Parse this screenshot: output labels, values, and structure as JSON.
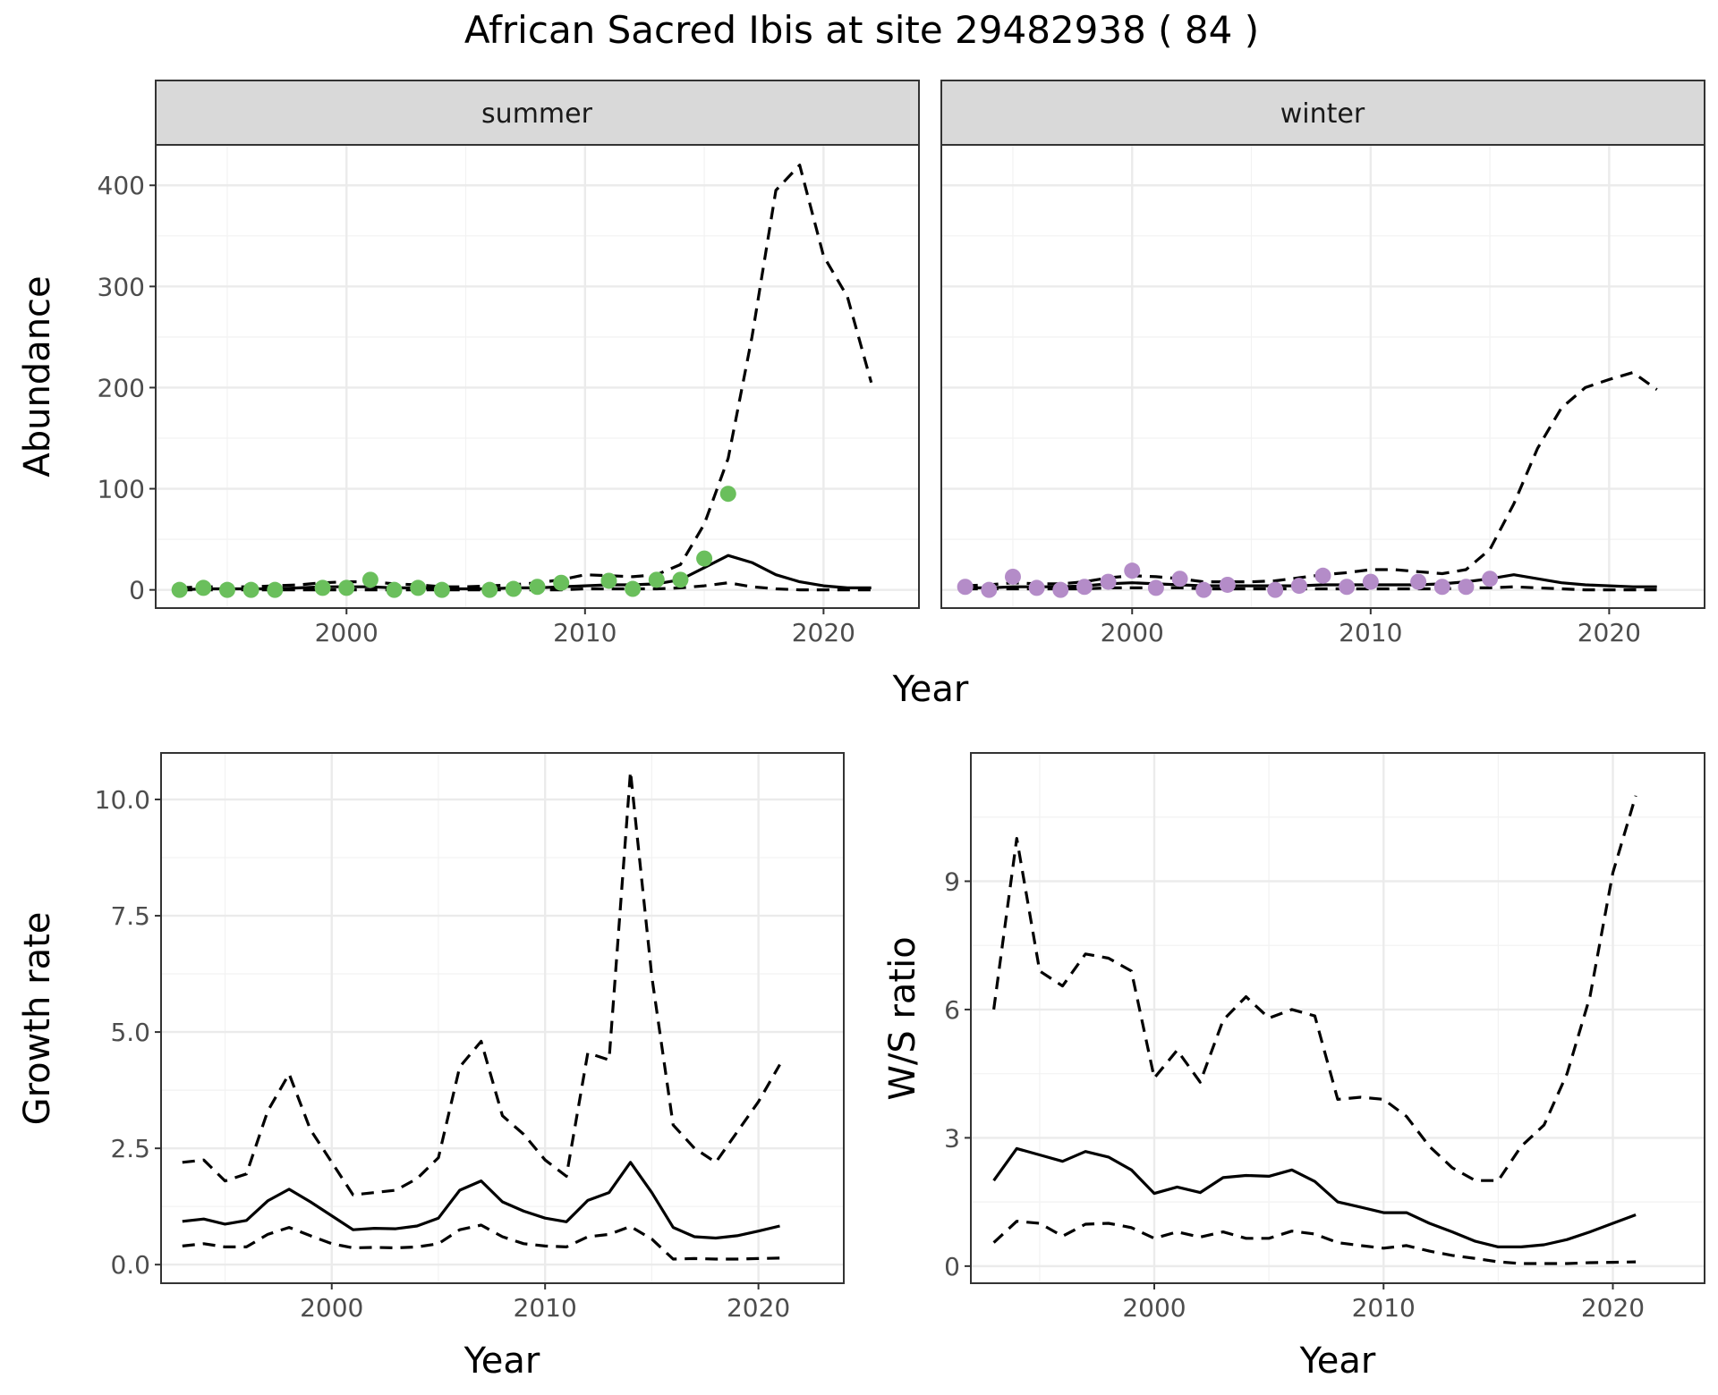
{
  "figure_title": "African Sacred Ibis at site 29482938 ( 84 )",
  "colors": {
    "summer_points": "#6abf5c",
    "winter_points": "#b48cc8",
    "lines": "#000000"
  },
  "chart_data": [
    {
      "type": "line",
      "facet": "summer",
      "strip_label": "summer",
      "xlabel": "Year",
      "ylabel": "Abundance",
      "xlim": [
        1992,
        2024
      ],
      "ylim": [
        -18,
        440
      ],
      "x_ticks": [
        2000,
        2010,
        2020
      ],
      "x_tick_labels": [
        "2000",
        "2010",
        "2020"
      ],
      "y_ticks": [
        0,
        100,
        200,
        300,
        400
      ],
      "y_tick_labels": [
        "0",
        "100",
        "200",
        "300",
        "400"
      ],
      "x": [
        1993,
        1994,
        1995,
        1996,
        1997,
        1998,
        1999,
        2000,
        2001,
        2002,
        2003,
        2004,
        2005,
        2006,
        2007,
        2008,
        2009,
        2010,
        2011,
        2012,
        2013,
        2014,
        2015,
        2016,
        2017,
        2018,
        2019,
        2020,
        2021,
        2022
      ],
      "series": [
        {
          "name": "",
          "style": "solid",
          "values": [
            0,
            1,
            1,
            1,
            1,
            2,
            3,
            3,
            3,
            2,
            2,
            1,
            1,
            1,
            2,
            2,
            3,
            4,
            5,
            5,
            6,
            10,
            22,
            34,
            27,
            15,
            8,
            4,
            2,
            2
          ]
        },
        {
          "name": "",
          "style": "dashed-upper",
          "values": [
            2,
            3,
            3,
            3,
            4,
            5,
            7,
            8,
            8,
            6,
            5,
            3,
            3,
            4,
            5,
            7,
            10,
            15,
            14,
            13,
            15,
            25,
            65,
            130,
            250,
            395,
            420,
            330,
            290,
            205
          ]
        },
        {
          "name": "",
          "style": "dashed-lower",
          "values": [
            0,
            0,
            0,
            0,
            0,
            0,
            0,
            0,
            0,
            0,
            0,
            0,
            0,
            0,
            0,
            0,
            0,
            1,
            1,
            1,
            1,
            2,
            4,
            7,
            3,
            1,
            0,
            0,
            0,
            0
          ]
        }
      ],
      "points": {
        "x": [
          1993,
          1994,
          1995,
          1996,
          1997,
          1999,
          2000,
          2001,
          2002,
          2003,
          2004,
          2006,
          2007,
          2008,
          2009,
          2011,
          2012,
          2013,
          2014,
          2015,
          2016
        ],
        "y": [
          0,
          2,
          0,
          0,
          0,
          2,
          2,
          10,
          0,
          2,
          0,
          0,
          1,
          3,
          7,
          9,
          1,
          10,
          10,
          31,
          95
        ]
      }
    },
    {
      "type": "line",
      "facet": "winter",
      "strip_label": "winter",
      "xlabel": "Year",
      "ylabel": "",
      "xlim": [
        1992,
        2024
      ],
      "ylim": [
        -18,
        440
      ],
      "x_ticks": [
        2000,
        2010,
        2020
      ],
      "x_tick_labels": [
        "2000",
        "2010",
        "2020"
      ],
      "y_ticks": [
        0,
        100,
        200,
        300,
        400
      ],
      "y_tick_labels": [],
      "x": [
        1993,
        1994,
        1995,
        1996,
        1997,
        1998,
        1999,
        2000,
        2001,
        2002,
        2003,
        2004,
        2005,
        2006,
        2007,
        2008,
        2009,
        2010,
        2011,
        2012,
        2013,
        2014,
        2015,
        2016,
        2017,
        2018,
        2019,
        2020,
        2021,
        2022
      ],
      "series": [
        {
          "name": "",
          "style": "solid",
          "values": [
            2,
            2,
            3,
            3,
            3,
            4,
            6,
            7,
            6,
            5,
            4,
            4,
            4,
            4,
            4,
            5,
            5,
            5,
            5,
            5,
            6,
            8,
            11,
            15,
            11,
            7,
            5,
            4,
            3,
            3
          ]
        },
        {
          "name": "",
          "style": "dashed-upper",
          "values": [
            4,
            5,
            7,
            6,
            6,
            8,
            12,
            14,
            13,
            11,
            8,
            8,
            8,
            9,
            12,
            15,
            17,
            20,
            20,
            18,
            16,
            20,
            40,
            85,
            140,
            180,
            200,
            208,
            215,
            198
          ]
        },
        {
          "name": "",
          "style": "dashed-lower",
          "values": [
            1,
            1,
            1,
            1,
            1,
            1,
            2,
            2,
            2,
            2,
            1,
            1,
            1,
            1,
            1,
            1,
            1,
            1,
            1,
            1,
            1,
            2,
            2,
            3,
            2,
            1,
            0,
            0,
            0,
            0
          ]
        }
      ],
      "points": {
        "x": [
          1993,
          1994,
          1995,
          1996,
          1997,
          1998,
          1999,
          2000,
          2001,
          2002,
          2003,
          2004,
          2006,
          2007,
          2008,
          2009,
          2010,
          2012,
          2013,
          2014,
          2015
        ],
        "y": [
          3,
          0,
          13,
          2,
          0,
          3,
          8,
          19,
          2,
          11,
          0,
          5,
          0,
          4,
          14,
          3,
          8,
          8,
          3,
          3,
          11
        ]
      }
    },
    {
      "type": "line",
      "facet": "growth-rate",
      "xlabel": "Year",
      "ylabel": "Growth rate",
      "xlim": [
        1992,
        2024
      ],
      "ylim": [
        -0.4,
        11
      ],
      "x_ticks": [
        2000,
        2010,
        2020
      ],
      "x_tick_labels": [
        "2000",
        "2010",
        "2020"
      ],
      "y_ticks": [
        0,
        2.5,
        5,
        7.5,
        10
      ],
      "y_tick_labels": [
        "0.0",
        "2.5",
        "5.0",
        "7.5",
        "10.0"
      ],
      "x": [
        1993,
        1994,
        1995,
        1996,
        1997,
        1998,
        1999,
        2000,
        2001,
        2002,
        2003,
        2004,
        2005,
        2006,
        2007,
        2008,
        2009,
        2010,
        2011,
        2012,
        2013,
        2014,
        2015,
        2016,
        2017,
        2018,
        2019,
        2020,
        2021
      ],
      "series": [
        {
          "name": "",
          "style": "solid",
          "values": [
            0.93,
            0.98,
            0.87,
            0.95,
            1.37,
            1.62,
            1.35,
            1.05,
            0.75,
            0.78,
            0.77,
            0.83,
            1.0,
            1.6,
            1.8,
            1.35,
            1.15,
            1.0,
            0.92,
            1.38,
            1.55,
            2.2,
            1.55,
            0.8,
            0.6,
            0.57,
            0.62,
            0.72,
            0.83
          ]
        },
        {
          "name": "",
          "style": "dashed-upper",
          "values": [
            2.2,
            2.25,
            1.8,
            1.95,
            3.3,
            4.1,
            2.9,
            2.2,
            1.5,
            1.55,
            1.6,
            1.85,
            2.3,
            4.25,
            4.8,
            3.2,
            2.8,
            2.25,
            1.9,
            4.55,
            4.4,
            10.6,
            6.2,
            3.0,
            2.5,
            2.2,
            2.85,
            3.5,
            4.3
          ]
        },
        {
          "name": "",
          "style": "dashed-lower",
          "values": [
            0.4,
            0.45,
            0.38,
            0.38,
            0.65,
            0.8,
            0.62,
            0.45,
            0.36,
            0.37,
            0.36,
            0.38,
            0.45,
            0.75,
            0.85,
            0.6,
            0.45,
            0.4,
            0.38,
            0.6,
            0.65,
            0.82,
            0.55,
            0.12,
            0.13,
            0.12,
            0.12,
            0.13,
            0.14
          ]
        }
      ]
    },
    {
      "type": "line",
      "facet": "ws-ratio",
      "xlabel": "Year",
      "ylabel": "W/S ratio",
      "xlim": [
        1992,
        2024
      ],
      "ylim": [
        -0.4,
        12.0
      ],
      "x_ticks": [
        2000,
        2010,
        2020
      ],
      "x_tick_labels": [
        "2000",
        "2010",
        "2020"
      ],
      "y_ticks": [
        0,
        3,
        6,
        9
      ],
      "y_tick_labels": [
        "0",
        "3",
        "6",
        "9"
      ],
      "x": [
        1993,
        1994,
        1995,
        1996,
        1997,
        1998,
        1999,
        2000,
        2001,
        2002,
        2003,
        2004,
        2005,
        2006,
        2007,
        2008,
        2009,
        2010,
        2011,
        2012,
        2013,
        2014,
        2015,
        2016,
        2017,
        2018,
        2019,
        2020,
        2021
      ],
      "series": [
        {
          "name": "",
          "style": "solid",
          "values": [
            2.0,
            2.75,
            2.6,
            2.45,
            2.68,
            2.55,
            2.25,
            1.7,
            1.85,
            1.72,
            2.07,
            2.12,
            2.1,
            2.25,
            1.98,
            1.5,
            1.38,
            1.25,
            1.25,
            1.0,
            0.8,
            0.58,
            0.45,
            0.45,
            0.5,
            0.62,
            0.8,
            1.0,
            1.2
          ]
        },
        {
          "name": "",
          "style": "dashed-upper",
          "values": [
            6.0,
            10.0,
            6.9,
            6.55,
            7.3,
            7.2,
            6.9,
            4.4,
            5.05,
            4.3,
            5.75,
            6.3,
            5.8,
            6.0,
            5.85,
            3.9,
            3.95,
            3.9,
            3.5,
            2.8,
            2.3,
            2.0,
            2.0,
            2.8,
            3.3,
            4.5,
            6.3,
            9.2,
            11.0
          ]
        },
        {
          "name": "",
          "style": "dashed-lower",
          "values": [
            0.55,
            1.05,
            1.0,
            0.7,
            0.98,
            1.0,
            0.9,
            0.65,
            0.8,
            0.68,
            0.8,
            0.65,
            0.65,
            0.82,
            0.75,
            0.55,
            0.48,
            0.42,
            0.48,
            0.35,
            0.25,
            0.18,
            0.1,
            0.06,
            0.06,
            0.06,
            0.08,
            0.09,
            0.1
          ]
        }
      ]
    }
  ]
}
